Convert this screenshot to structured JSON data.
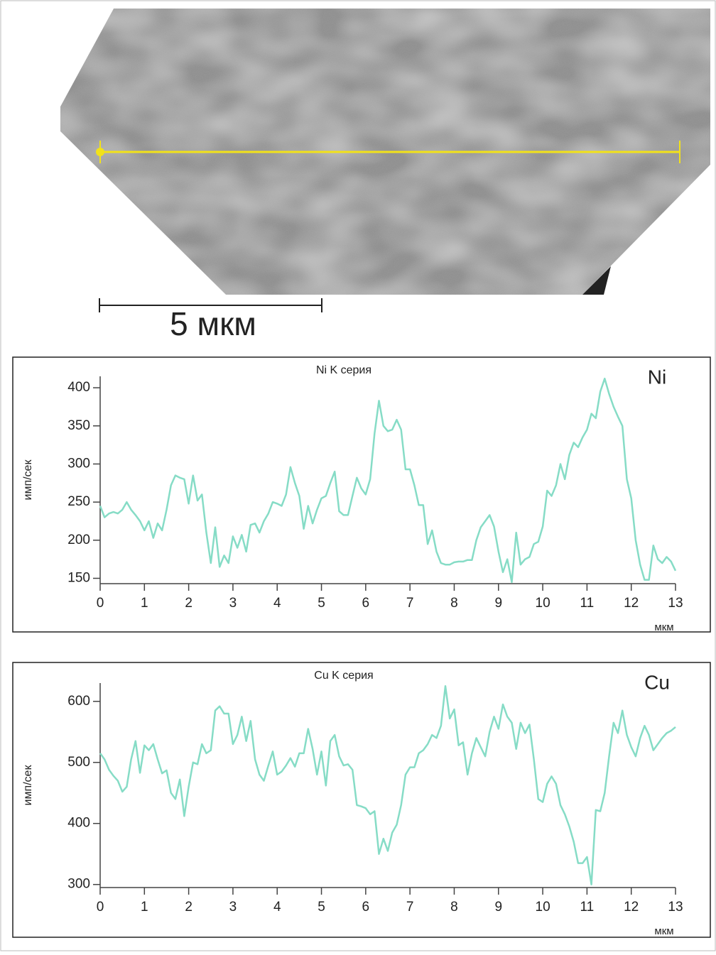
{
  "image": {
    "scale_bar_label": "5 мкм"
  },
  "chart_data": [
    {
      "type": "line",
      "title": "Ni K серия",
      "xlabel": "мкм",
      "ylabel": "имп/сек",
      "x": [
        0,
        0.1,
        0.2,
        0.3,
        0.4,
        0.5,
        0.6,
        0.7,
        0.8,
        0.9,
        1,
        1.1,
        1.2,
        1.3,
        1.4,
        1.5,
        1.6,
        1.7,
        1.8,
        1.9,
        2,
        2.1,
        2.2,
        2.3,
        2.4,
        2.5,
        2.6,
        2.7,
        2.8,
        2.9,
        3,
        3.1,
        3.2,
        3.3,
        3.4,
        3.5,
        3.6,
        3.7,
        3.8,
        3.9,
        4,
        4.1,
        4.2,
        4.3,
        4.4,
        4.5,
        4.6,
        4.7,
        4.8,
        4.9,
        5,
        5.1,
        5.2,
        5.3,
        5.4,
        5.5,
        5.6,
        5.7,
        5.8,
        5.9,
        6,
        6.1,
        6.2,
        6.3,
        6.4,
        6.5,
        6.6,
        6.7,
        6.8,
        6.9,
        7,
        7.1,
        7.2,
        7.3,
        7.4,
        7.5,
        7.6,
        7.7,
        7.8,
        7.9,
        8,
        8.1,
        8.2,
        8.3,
        8.4,
        8.5,
        8.6,
        8.7,
        8.8,
        8.9,
        9,
        9.1,
        9.2,
        9.3,
        9.4,
        9.5,
        9.6,
        9.7,
        9.8,
        9.9,
        10,
        10.1,
        10.2,
        10.3,
        10.4,
        10.5,
        10.6,
        10.7,
        10.8,
        10.9,
        11,
        11.1,
        11.2,
        11.3,
        11.4,
        11.5,
        11.6,
        11.7,
        11.8,
        11.9,
        12,
        12.1,
        12.2,
        12.3,
        12.4,
        12.5,
        12.6,
        12.7,
        12.8,
        12.9,
        13
      ],
      "series": [
        {
          "name": "Ni",
          "color": "#86dcc6",
          "values": [
            245,
            230,
            235,
            237,
            235,
            240,
            250,
            240,
            233,
            225,
            213,
            225,
            203,
            222,
            213,
            240,
            272,
            285,
            282,
            280,
            248,
            285,
            252,
            260,
            210,
            170,
            217,
            165,
            180,
            170,
            205,
            190,
            207,
            185,
            220,
            222,
            210,
            225,
            235,
            250,
            248,
            245,
            260,
            296,
            275,
            258,
            215,
            245,
            222,
            240,
            255,
            258,
            275,
            290,
            238,
            233,
            233,
            258,
            282,
            268,
            260,
            280,
            340,
            383,
            350,
            343,
            345,
            358,
            345,
            293,
            293,
            272,
            246,
            246,
            195,
            213,
            185,
            170,
            168,
            168,
            171,
            172,
            172,
            174,
            174,
            200,
            217,
            225,
            233,
            218,
            185,
            158,
            175,
            145,
            210,
            168,
            175,
            178,
            195,
            198,
            218,
            265,
            258,
            272,
            300,
            280,
            312,
            328,
            322,
            335,
            345,
            366,
            360,
            395,
            412,
            392,
            375,
            362,
            350,
            280,
            255,
            200,
            168,
            148,
            148,
            193,
            175,
            170,
            178,
            172,
            160
          ]
        }
      ],
      "xlim": [
        0,
        13
      ],
      "xticks": [
        0,
        1,
        2,
        3,
        4,
        5,
        6,
        7,
        8,
        9,
        10,
        11,
        12,
        13
      ],
      "ylim": [
        143,
        415
      ],
      "yticks": [
        150,
        200,
        250,
        300,
        350,
        400
      ]
    },
    {
      "type": "line",
      "title": "Cu K серия",
      "xlabel": "мкм",
      "ylabel": "имп/сек",
      "x": [
        0,
        0.1,
        0.2,
        0.3,
        0.4,
        0.5,
        0.6,
        0.7,
        0.8,
        0.9,
        1,
        1.1,
        1.2,
        1.3,
        1.4,
        1.5,
        1.6,
        1.7,
        1.8,
        1.9,
        2,
        2.1,
        2.2,
        2.3,
        2.4,
        2.5,
        2.6,
        2.7,
        2.8,
        2.9,
        3,
        3.1,
        3.2,
        3.3,
        3.4,
        3.5,
        3.6,
        3.7,
        3.8,
        3.9,
        4,
        4.1,
        4.2,
        4.3,
        4.4,
        4.5,
        4.6,
        4.7,
        4.8,
        4.9,
        5,
        5.1,
        5.2,
        5.3,
        5.4,
        5.5,
        5.6,
        5.7,
        5.8,
        5.9,
        6,
        6.1,
        6.2,
        6.3,
        6.4,
        6.5,
        6.6,
        6.7,
        6.8,
        6.9,
        7,
        7.1,
        7.2,
        7.3,
        7.4,
        7.5,
        7.6,
        7.7,
        7.8,
        7.9,
        8,
        8.1,
        8.2,
        8.3,
        8.4,
        8.5,
        8.6,
        8.7,
        8.8,
        8.9,
        9,
        9.1,
        9.2,
        9.3,
        9.4,
        9.5,
        9.6,
        9.7,
        9.8,
        9.9,
        10,
        10.1,
        10.2,
        10.3,
        10.4,
        10.5,
        10.6,
        10.7,
        10.8,
        10.9,
        11,
        11.1,
        11.2,
        11.3,
        11.4,
        11.5,
        11.6,
        11.7,
        11.8,
        11.9,
        12,
        12.1,
        12.2,
        12.3,
        12.4,
        12.5,
        12.6,
        12.7,
        12.8,
        12.9,
        13
      ],
      "series": [
        {
          "name": "Cu",
          "color": "#86dcc6",
          "values": [
            515,
            505,
            488,
            478,
            470,
            452,
            460,
            505,
            535,
            483,
            528,
            520,
            530,
            505,
            482,
            487,
            450,
            440,
            472,
            412,
            460,
            500,
            497,
            530,
            515,
            520,
            585,
            592,
            580,
            580,
            530,
            545,
            575,
            535,
            568,
            505,
            480,
            470,
            495,
            518,
            480,
            485,
            495,
            507,
            493,
            515,
            515,
            555,
            522,
            480,
            518,
            462,
            535,
            545,
            510,
            495,
            497,
            488,
            430,
            428,
            425,
            415,
            420,
            350,
            375,
            355,
            385,
            398,
            430,
            480,
            492,
            492,
            515,
            520,
            530,
            545,
            540,
            560,
            625,
            572,
            587,
            528,
            533,
            480,
            515,
            540,
            525,
            510,
            550,
            575,
            555,
            595,
            575,
            565,
            522,
            565,
            548,
            562,
            505,
            440,
            435,
            465,
            477,
            465,
            430,
            415,
            395,
            370,
            335,
            335,
            345,
            300,
            422,
            420,
            450,
            510,
            565,
            548,
            585,
            545,
            525,
            510,
            540,
            560,
            545,
            520,
            530,
            540,
            548,
            552,
            558
          ]
        }
      ],
      "xlim": [
        0,
        13
      ],
      "xticks": [
        0,
        1,
        2,
        3,
        4,
        5,
        6,
        7,
        8,
        9,
        10,
        11,
        12,
        13
      ],
      "ylim": [
        295,
        630
      ],
      "yticks": [
        300,
        400,
        500,
        600
      ]
    }
  ]
}
